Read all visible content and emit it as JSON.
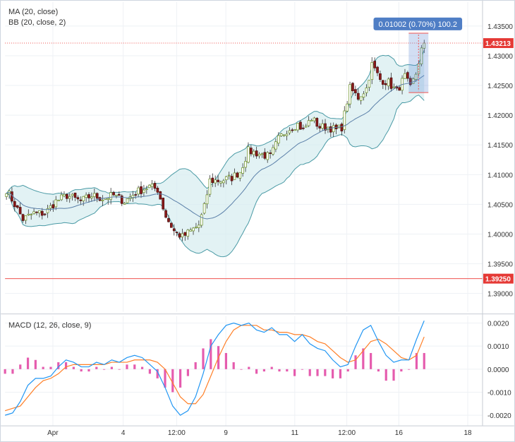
{
  "indicators": {
    "ma": "MA (20, close)",
    "bb": "BB (20, close, 2)",
    "macd": "MACD (12, 26, close, 9)"
  },
  "measure_label": "0.01002 (0.70%) 100.2",
  "price_tags": {
    "current": "1.43213",
    "horizontal_line": "1.39250"
  },
  "colors": {
    "up": "#26a69a",
    "down": "#ef5350",
    "candle_up_body": "#6b8e23",
    "candle_down_body": "#8b1a1a",
    "bb_line": "#4a9aa5",
    "bb_fill": "#d6ecef",
    "ma": "#5a7fa8",
    "macd": "#2196f3",
    "signal": "#ff7f27",
    "hist": "#e040a0",
    "hline": "#ef5350",
    "measure": "#4a7bd0"
  },
  "chart_data": [
    {
      "type": "candlestick",
      "title": "",
      "x_tick_labels": [
        "Apr",
        "4",
        "12:00",
        "9",
        "11",
        "12:00",
        "16",
        "18"
      ],
      "y_tick_labels": [
        "1.43500",
        "1.43000",
        "1.42500",
        "1.42000",
        "1.41500",
        "1.41000",
        "1.40500",
        "1.40000",
        "1.39500",
        "1.39000"
      ],
      "ylim": [
        1.3865,
        1.4375
      ],
      "current_price": 1.43213,
      "horizontal_line": 1.3925,
      "close_anchors": [
        [
          0,
          1.4075
        ],
        [
          3,
          1.405
        ],
        [
          6,
          1.4025
        ],
        [
          10,
          1.4035
        ],
        [
          14,
          1.4035
        ],
        [
          18,
          1.4055
        ],
        [
          22,
          1.4065
        ],
        [
          27,
          1.4055
        ],
        [
          31,
          1.4065
        ],
        [
          35,
          1.406
        ],
        [
          39,
          1.4065
        ],
        [
          43,
          1.4055
        ],
        [
          47,
          1.407
        ],
        [
          52,
          1.408
        ],
        [
          55,
          1.4075
        ],
        [
          58,
          1.403
        ],
        [
          61,
          1.4005
        ],
        [
          64,
          1.3995
        ],
        [
          67,
          1.4005
        ],
        [
          70,
          1.4015
        ],
        [
          72,
          1.4045
        ],
        [
          74,
          1.409
        ],
        [
          78,
          1.409
        ],
        [
          82,
          1.4095
        ],
        [
          85,
          1.4105
        ],
        [
          88,
          1.414
        ],
        [
          92,
          1.4135
        ],
        [
          96,
          1.413
        ],
        [
          99,
          1.416
        ],
        [
          102,
          1.4175
        ],
        [
          106,
          1.4185
        ],
        [
          108,
          1.4175
        ],
        [
          111,
          1.4195
        ],
        [
          114,
          1.418
        ],
        [
          117,
          1.418
        ],
        [
          120,
          1.4175
        ],
        [
          122,
          1.418
        ],
        [
          125,
          1.4245
        ],
        [
          128,
          1.423
        ],
        [
          131,
          1.4245
        ],
        [
          133,
          1.4285
        ],
        [
          136,
          1.426
        ],
        [
          139,
          1.4255
        ],
        [
          142,
          1.424
        ],
        [
          145,
          1.4265
        ],
        [
          147,
          1.4245
        ],
        [
          149,
          1.427
        ],
        [
          151,
          1.431
        ],
        [
          152,
          1.4321
        ]
      ],
      "measure": {
        "from_price": 1.4238,
        "to_price": 1.4338,
        "label": "0.01002 (0.70%) 100.2"
      }
    },
    {
      "type": "line",
      "title": "MACD (12, 26, close, 9)",
      "y_tick_labels": [
        "0.0020",
        "0.0010",
        "0.0000",
        "-0.0010",
        "-0.0020"
      ],
      "ylim": [
        -0.0023,
        0.0022
      ],
      "series": [
        {
          "name": "MACD",
          "values": [
            -0.002,
            -0.0019,
            -0.0014,
            -0.0007,
            -0.0004,
            -0.0004,
            -0.0003,
            0.0001,
            0.0004,
            0.0003,
            0.0001,
            0.0001,
            0.0003,
            0.0002,
            0.0004,
            0.0003,
            0.0005,
            0.0006,
            0.0005,
            0.0002,
            -0.0001,
            -0.0008,
            -0.0016,
            -0.002,
            -0.0018,
            -0.0012,
            -0.0002,
            0.001,
            0.0015,
            0.0019,
            0.002,
            0.0019,
            0.002,
            0.0017,
            0.0016,
            0.0018,
            0.0015,
            0.0015,
            0.0012,
            0.0015,
            0.0011,
            0.0009,
            0.0008,
            0.0004,
            0.0001,
            0.0002,
            0.001,
            0.0017,
            0.0019,
            0.0012,
            0.0006,
            0.0003,
            0.0004,
            0.0004,
            0.0013,
            0.0021
          ]
        },
        {
          "name": "Signal",
          "values": [
            -0.0018,
            -0.0017,
            -0.0016,
            -0.0012,
            -0.0008,
            -0.0005,
            -0.0004,
            -0.0002,
            0.0001,
            0.0002,
            0.0002,
            0.0002,
            0.0002,
            0.0002,
            0.0003,
            0.0003,
            0.0003,
            0.0004,
            0.0004,
            0.0004,
            0.0003,
            0.0,
            -0.0006,
            -0.0012,
            -0.0015,
            -0.0015,
            -0.0011,
            -0.0003,
            0.0005,
            0.0012,
            0.0017,
            0.0019,
            0.0019,
            0.0019,
            0.0017,
            0.0017,
            0.0016,
            0.0016,
            0.0015,
            0.0015,
            0.0014,
            0.0012,
            0.0011,
            0.0008,
            0.0005,
            0.0003,
            0.0004,
            0.0008,
            0.0012,
            0.0013,
            0.0011,
            0.0008,
            0.0005,
            0.0004,
            0.0006,
            0.0014
          ]
        }
      ]
    }
  ]
}
